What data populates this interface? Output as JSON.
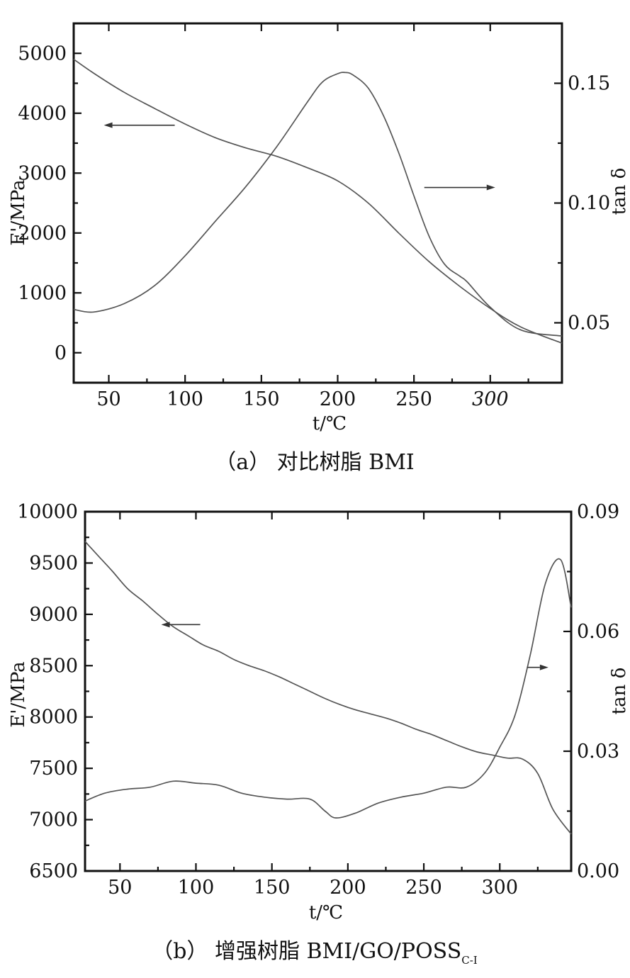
{
  "chart_data": [
    {
      "type": "line",
      "caption": "（a） 对比树脂 BMI",
      "xlabel": "t/℃",
      "xlim": [
        27,
        347
      ],
      "xticks": [
        50,
        100,
        150,
        200,
        250,
        300
      ],
      "x_tick_labels": [
        "50",
        "100",
        "150",
        "200",
        "250",
        "300"
      ],
      "ylabel_left": "E'/MPa",
      "ylim_left": [
        -500,
        5500
      ],
      "yticks_left": [
        0,
        1000,
        2000,
        3000,
        4000,
        5000
      ],
      "y_tick_labels_left": [
        "0",
        "1000",
        "2000",
        "3000",
        "4000",
        "5000"
      ],
      "ylabel_right": "tan δ",
      "ylim_right": [
        0.025,
        0.175
      ],
      "yticks_right": [
        0.05,
        0.1,
        0.15
      ],
      "y_tick_labels_right": [
        "0.05",
        "0.10",
        "0.15"
      ],
      "series": [
        {
          "axis": "left",
          "x": [
            27,
            40,
            60,
            80,
            100,
            120,
            140,
            160,
            180,
            200,
            220,
            240,
            260,
            280,
            300,
            320,
            347
          ],
          "values": [
            4900,
            4670,
            4350,
            4080,
            3820,
            3590,
            3420,
            3280,
            3090,
            2870,
            2500,
            2000,
            1520,
            1110,
            740,
            430,
            160
          ]
        },
        {
          "axis": "right",
          "x": [
            27,
            40,
            60,
            80,
            100,
            120,
            140,
            160,
            180,
            190,
            200,
            205,
            210,
            220,
            230,
            240,
            250,
            260,
            270,
            280,
            285,
            300,
            320,
            347
          ],
          "values": [
            0.0556,
            0.0545,
            0.058,
            0.0655,
            0.078,
            0.0925,
            0.107,
            0.1235,
            0.142,
            0.1505,
            0.154,
            0.1545,
            0.1535,
            0.148,
            0.1365,
            0.121,
            0.103,
            0.086,
            0.0745,
            0.0695,
            0.067,
            0.0565,
            0.047,
            0.0445
          ]
        }
      ],
      "annotations": [
        {
          "points_to": "left",
          "at_x": 70,
          "at_y_left": 3800
        },
        {
          "points_to": "right",
          "at_x": 280,
          "at_y_right": 0.1065
        }
      ]
    },
    {
      "type": "line",
      "caption": "（b） 增强树脂 BMI/GO/POSS",
      "caption_subscript": "C-I",
      "xlabel": "t/℃",
      "xlim": [
        27,
        347
      ],
      "xticks": [
        50,
        100,
        150,
        200,
        250,
        300
      ],
      "x_tick_labels": [
        "50",
        "100",
        "150",
        "200",
        "250",
        "300"
      ],
      "ylabel_left": "E'/MPa",
      "ylim_left": [
        6500,
        10000
      ],
      "yticks_left": [
        6500,
        7000,
        7500,
        8000,
        8500,
        9000,
        9500,
        10000
      ],
      "y_tick_labels_left": [
        "6500",
        "7000",
        "7500",
        "8000",
        "8500",
        "9000",
        "9500",
        "10000"
      ],
      "ylabel_right": "tan δ",
      "ylim_right": [
        0.0,
        0.09
      ],
      "yticks_right": [
        0.0,
        0.03,
        0.06,
        0.09
      ],
      "y_tick_labels_right": [
        "0.00",
        "0.03",
        "0.06",
        "0.09"
      ],
      "series": [
        {
          "axis": "left",
          "x": [
            27,
            35,
            45,
            55,
            65,
            75,
            85,
            95,
            105,
            115,
            125,
            135,
            145,
            155,
            165,
            175,
            185,
            195,
            205,
            215,
            225,
            235,
            245,
            255,
            265,
            275,
            285,
            295,
            305,
            315,
            325,
            335,
            347
          ],
          "values": [
            9710,
            9580,
            9420,
            9250,
            9130,
            9000,
            8880,
            8790,
            8700,
            8640,
            8560,
            8500,
            8450,
            8390,
            8320,
            8250,
            8180,
            8120,
            8070,
            8030,
            7990,
            7940,
            7880,
            7830,
            7770,
            7710,
            7660,
            7630,
            7600,
            7590,
            7450,
            7100,
            6860
          ]
        },
        {
          "axis": "right",
          "x": [
            27,
            40,
            55,
            70,
            85,
            100,
            115,
            130,
            145,
            160,
            175,
            185,
            192,
            205,
            220,
            235,
            250,
            265,
            278,
            290,
            300,
            310,
            320,
            330,
            340,
            347
          ],
          "values": [
            0.0175,
            0.0195,
            0.0205,
            0.021,
            0.0225,
            0.022,
            0.0215,
            0.0195,
            0.0185,
            0.018,
            0.018,
            0.015,
            0.0133,
            0.0145,
            0.017,
            0.0185,
            0.0195,
            0.021,
            0.021,
            0.0245,
            0.031,
            0.039,
            0.054,
            0.072,
            0.078,
            0.066
          ]
        }
      ],
      "annotations": [
        {
          "points_to": "left",
          "at_x": 90,
          "at_y_left": 8900
        },
        {
          "points_to": "right",
          "at_x": 325,
          "at_y_right": 0.051
        }
      ]
    }
  ]
}
